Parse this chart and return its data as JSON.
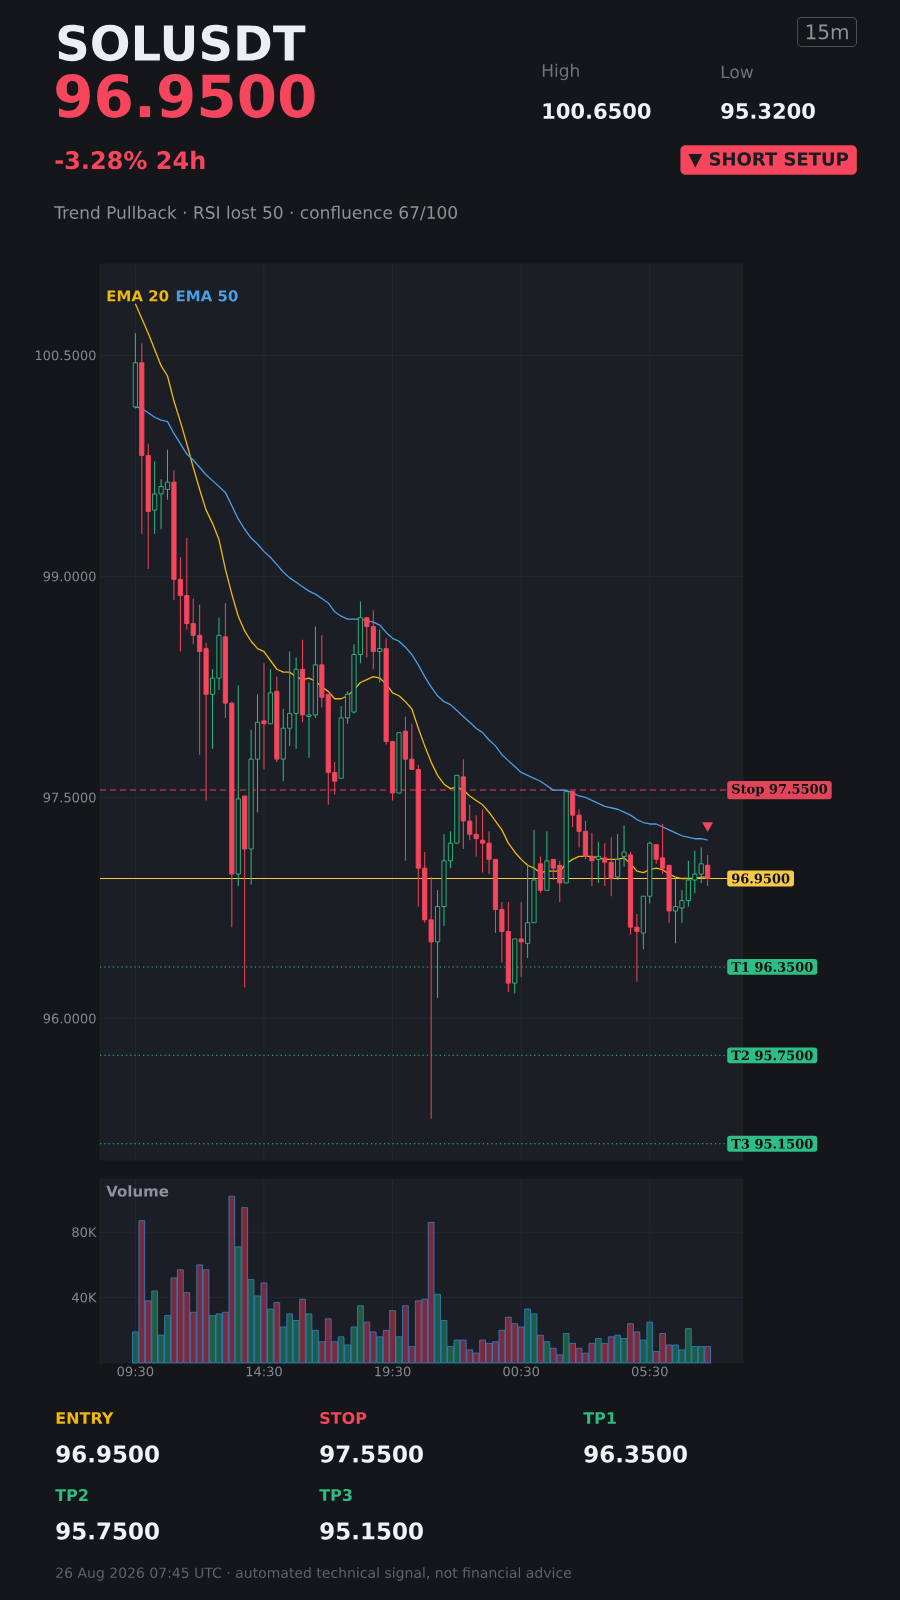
{
  "chart_data": [
    {
      "type": "other",
      "title": "SOLUSDT",
      "annotations": [
        "96.9500",
        "-3.28%  24h",
        "Trend Pullback · RSI lost 50 · confluence 67/100",
        "High",
        "100.6500",
        "Low",
        "95.3200",
        "15m",
        "▼ SHORT SETUP"
      ]
    },
    {
      "type": "candlestick",
      "categories": [
        null,
        null,
        null,
        null,
        null,
        null,
        null,
        null,
        null,
        null,
        null,
        null,
        null,
        null,
        null,
        null,
        null,
        null,
        null,
        null,
        null,
        null,
        null,
        null,
        null,
        null,
        null,
        null,
        null,
        null,
        null,
        null,
        null,
        null,
        null,
        null,
        null,
        null,
        null,
        null,
        null,
        null,
        null,
        null,
        null,
        null,
        null,
        null,
        null,
        null,
        null,
        null,
        null,
        null,
        null,
        null,
        null,
        null,
        null,
        null,
        null,
        null,
        null,
        null,
        null,
        null,
        null,
        null,
        null,
        null,
        null,
        null,
        null,
        null,
        null,
        null,
        null,
        null,
        null,
        null,
        null,
        null,
        null,
        null,
        null,
        null,
        null,
        null,
        null,
        null
      ],
      "ohlc": [
        [
          100.15,
          100.65,
          100.14,
          100.45
        ],
        [
          100.45,
          100.58,
          99.29,
          99.82
        ],
        [
          99.82,
          99.9,
          99.05,
          99.44
        ],
        [
          99.45,
          99.78,
          99.29,
          99.56
        ],
        [
          99.56,
          99.66,
          99.32,
          99.61
        ],
        [
          99.59,
          99.86,
          99.52,
          99.64
        ],
        [
          99.64,
          99.72,
          98.84,
          98.98
        ],
        [
          98.98,
          99.13,
          98.49,
          98.87
        ],
        [
          98.87,
          99.26,
          98.64,
          98.68
        ],
        [
          98.68,
          98.85,
          98.54,
          98.6
        ],
        [
          98.6,
          98.81,
          97.79,
          98.49
        ],
        [
          98.51,
          98.55,
          97.48,
          98.2
        ],
        [
          98.2,
          98.37,
          97.83,
          98.31
        ],
        [
          98.31,
          98.72,
          98.23,
          98.6
        ],
        [
          98.59,
          98.82,
          98.04,
          98.14
        ],
        [
          98.14,
          98.15,
          96.62,
          96.98
        ],
        [
          96.98,
          98.26,
          96.9,
          97.49
        ],
        [
          97.51,
          97.51,
          96.21,
          97.15
        ],
        [
          97.15,
          97.96,
          96.91,
          97.76
        ],
        [
          97.76,
          98.2,
          97.4,
          98.01
        ],
        [
          98.02,
          98.41,
          97.69,
          98.0
        ],
        [
          98.0,
          98.37,
          98.0,
          98.21
        ],
        [
          98.22,
          98.32,
          97.74,
          97.76
        ],
        [
          97.76,
          98.1,
          97.61,
          97.97
        ],
        [
          97.97,
          98.49,
          97.85,
          98.07
        ],
        [
          98.07,
          98.45,
          97.83,
          98.37
        ],
        [
          98.37,
          98.57,
          98.01,
          98.06
        ],
        [
          98.05,
          98.28,
          97.77,
          98.06
        ],
        [
          98.06,
          98.66,
          98.04,
          98.4
        ],
        [
          98.4,
          98.6,
          98.11,
          98.18
        ],
        [
          98.2,
          98.2,
          97.45,
          97.67
        ],
        [
          97.67,
          97.74,
          97.52,
          97.61
        ],
        [
          97.63,
          98.12,
          97.63,
          98.04
        ],
        [
          98.04,
          98.22,
          98.0,
          98.2
        ],
        [
          98.08,
          98.54,
          98.07,
          98.47
        ],
        [
          98.47,
          98.83,
          98.41,
          98.72
        ],
        [
          98.72,
          98.72,
          98.45,
          98.66
        ],
        [
          98.66,
          98.77,
          98.37,
          98.49
        ],
        [
          98.49,
          98.64,
          98.28,
          98.51
        ],
        [
          98.51,
          98.58,
          97.86,
          97.88
        ],
        [
          97.88,
          97.88,
          97.48,
          97.53
        ],
        [
          97.53,
          97.94,
          97.53,
          97.94
        ],
        [
          97.95,
          98.05,
          97.07,
          97.76
        ],
        [
          97.76,
          98.0,
          97.69,
          97.69
        ],
        [
          97.69,
          97.72,
          96.76,
          97.02
        ],
        [
          97.02,
          97.13,
          96.65,
          96.67
        ],
        [
          96.67,
          96.96,
          95.32,
          96.52
        ],
        [
          96.52,
          96.87,
          96.14,
          96.76
        ],
        [
          96.76,
          97.25,
          96.63,
          97.07
        ],
        [
          97.07,
          97.27,
          97.02,
          97.19
        ],
        [
          97.19,
          97.65,
          97.19,
          97.65
        ],
        [
          97.64,
          97.76,
          97.15,
          97.34
        ],
        [
          97.34,
          97.45,
          97.21,
          97.25
        ],
        [
          97.25,
          97.38,
          97.1,
          97.22
        ],
        [
          97.21,
          97.42,
          96.99,
          97.19
        ],
        [
          97.19,
          97.27,
          96.98,
          97.08
        ],
        [
          97.08,
          97.08,
          96.58,
          96.74
        ],
        [
          96.74,
          96.79,
          96.38,
          96.59
        ],
        [
          96.59,
          96.79,
          96.18,
          96.24
        ],
        [
          96.24,
          96.54,
          96.17,
          96.54
        ],
        [
          96.54,
          96.79,
          96.28,
          96.52
        ],
        [
          96.51,
          97.05,
          96.41,
          96.65
        ],
        [
          96.65,
          97.28,
          96.65,
          96.94
        ],
        [
          97.05,
          97.1,
          96.85,
          96.87
        ],
        [
          96.87,
          97.27,
          96.87,
          97.07
        ],
        [
          97.08,
          97.08,
          96.94,
          97.02
        ],
        [
          97.04,
          97.07,
          96.79,
          96.92
        ],
        [
          96.92,
          97.54,
          96.92,
          97.54
        ],
        [
          97.54,
          97.54,
          97.3,
          97.38
        ],
        [
          97.38,
          97.42,
          97.16,
          97.27
        ],
        [
          97.27,
          97.34,
          97.08,
          97.1
        ],
        [
          97.1,
          97.26,
          96.9,
          97.07
        ],
        [
          97.08,
          97.2,
          96.92,
          97.1
        ],
        [
          97.09,
          97.19,
          96.9,
          97.06
        ],
        [
          97.06,
          97.23,
          96.83,
          96.95
        ],
        [
          96.96,
          97.25,
          96.94,
          97.08
        ],
        [
          97.1,
          97.31,
          97.03,
          97.13
        ],
        [
          97.11,
          97.13,
          96.57,
          96.62
        ],
        [
          96.62,
          96.71,
          96.25,
          96.59
        ],
        [
          96.58,
          96.83,
          96.47,
          96.83
        ],
        [
          96.83,
          97.2,
          96.78,
          97.19
        ],
        [
          97.18,
          97.18,
          97.05,
          97.08
        ],
        [
          97.09,
          97.32,
          96.98,
          97.02
        ],
        [
          97.04,
          97.04,
          96.65,
          96.73
        ],
        [
          96.73,
          96.96,
          96.51,
          96.76
        ],
        [
          96.75,
          96.87,
          96.65,
          96.8
        ],
        [
          96.8,
          97.07,
          96.76,
          96.94
        ],
        [
          96.94,
          97.14,
          96.85,
          96.98
        ],
        [
          96.98,
          97.16,
          96.92,
          97.05
        ],
        [
          97.04,
          97.11,
          96.9,
          96.95
        ]
      ],
      "series": [
        {
          "name": "EMA 20",
          "type": "line",
          "color": "#f0b90b",
          "values": [
            100.85,
            100.75,
            100.65,
            100.54,
            100.43,
            100.36,
            100.19,
            100.05,
            99.9,
            99.74,
            99.59,
            99.45,
            99.36,
            99.25,
            99.05,
            98.88,
            98.73,
            98.63,
            98.56,
            98.51,
            98.49,
            98.43,
            98.37,
            98.35,
            98.35,
            98.32,
            98.3,
            98.31,
            98.29,
            98.25,
            98.22,
            98.17,
            98.17,
            98.19,
            98.23,
            98.28,
            98.3,
            98.32,
            98.31,
            98.27,
            98.21,
            98.19,
            98.15,
            98.1,
            97.97,
            97.85,
            97.74,
            97.65,
            97.59,
            97.56,
            97.57,
            97.55,
            97.51,
            97.48,
            97.45,
            97.4,
            97.34,
            97.28,
            97.19,
            97.13,
            97.08,
            97.04,
            97.02,
            96.99,
            97.0,
            97.0,
            97.0,
            97.05,
            97.08,
            97.1,
            97.1,
            97.1,
            97.09,
            97.08,
            97.08,
            97.08,
            97.09,
            97.05,
            97.0,
            96.99,
            97.01,
            97.02,
            97.01,
            96.98,
            96.96,
            96.95,
            96.95,
            96.95,
            96.96,
            96.96
          ]
        },
        {
          "name": "EMA 50",
          "type": "line",
          "color": "#4c9ee8",
          "values": [
            100.15,
            100.14,
            100.11,
            100.08,
            100.06,
            100.05,
            99.97,
            99.9,
            99.83,
            99.79,
            99.74,
            99.69,
            99.65,
            99.61,
            99.57,
            99.48,
            99.39,
            99.32,
            99.26,
            99.22,
            99.17,
            99.13,
            99.08,
            99.03,
            98.99,
            98.96,
            98.93,
            98.9,
            98.88,
            98.85,
            98.82,
            98.76,
            98.73,
            98.71,
            98.71,
            98.71,
            98.7,
            98.69,
            98.67,
            98.62,
            98.58,
            98.56,
            98.52,
            98.47,
            98.4,
            98.32,
            98.25,
            98.19,
            98.15,
            98.13,
            98.09,
            98.05,
            98.01,
            97.97,
            97.94,
            97.89,
            97.85,
            97.79,
            97.75,
            97.71,
            97.67,
            97.65,
            97.63,
            97.61,
            97.58,
            97.55,
            97.55,
            97.55,
            97.53,
            97.51,
            97.5,
            97.48,
            97.46,
            97.44,
            97.43,
            97.42,
            97.4,
            97.38,
            97.35,
            97.33,
            97.32,
            97.32,
            97.3,
            97.28,
            97.26,
            97.24,
            97.23,
            97.22,
            97.22,
            97.21
          ]
        },
        {
          "type": "scatter",
          "marker": "triangle",
          "color": "#f6465d",
          "values": [
            null,
            null,
            null,
            null,
            null,
            null,
            null,
            null,
            null,
            null,
            null,
            null,
            null,
            null,
            null,
            null,
            null,
            null,
            null,
            null,
            null,
            null,
            null,
            null,
            null,
            null,
            null,
            null,
            null,
            null,
            null,
            null,
            null,
            null,
            null,
            null,
            null,
            null,
            null,
            null,
            null,
            null,
            null,
            null,
            null,
            null,
            null,
            null,
            null,
            null,
            null,
            null,
            null,
            null,
            null,
            null,
            null,
            null,
            null,
            null,
            null,
            null,
            null,
            null,
            null,
            null,
            null,
            null,
            null,
            null,
            null,
            null,
            null,
            null,
            null,
            null,
            null,
            null,
            null,
            null,
            null,
            null,
            null,
            null,
            null,
            null,
            null,
            null,
            null,
            97.31
          ]
        }
      ],
      "ylim": [
        95.04,
        101.12
      ],
      "yticks": [
        {
          "value": 96,
          "label": "96.0000"
        },
        {
          "value": 97.5,
          "label": "97.5000"
        },
        {
          "value": 99,
          "label": "99.0000"
        },
        {
          "value": 100.5,
          "label": "100.5000"
        }
      ],
      "ref_lines": [
        {
          "axis": "y",
          "value": 97.55,
          "label": "Stop 97.5500",
          "color": "#e0455a",
          "line_style": "dashed"
        },
        {
          "axis": "y",
          "value": 96.95,
          "label": "96.9500",
          "color": "#f7c948",
          "line_style": "solid"
        },
        {
          "axis": "y",
          "value": 96.35,
          "label": "T1 96.3500",
          "color": "#2ebd85",
          "line_style": "dotted"
        },
        {
          "axis": "y",
          "value": 95.75,
          "label": "T2 95.7500",
          "color": "#2ebd85",
          "line_style": "dotted"
        },
        {
          "axis": "y",
          "value": 95.15,
          "label": "T3 95.1500",
          "color": "#2ebd85",
          "line_style": "dotted"
        }
      ],
      "grid": true,
      "tick_labels": "y"
    },
    {
      "type": "bar",
      "title": "Volume",
      "categories": [
        "09:30",
        null,
        null,
        null,
        null,
        null,
        null,
        null,
        null,
        null,
        null,
        null,
        null,
        null,
        null,
        null,
        null,
        null,
        null,
        null,
        "14:30",
        null,
        null,
        null,
        null,
        null,
        null,
        null,
        null,
        null,
        null,
        null,
        null,
        null,
        null,
        null,
        null,
        null,
        null,
        null,
        "19:30",
        null,
        null,
        null,
        null,
        null,
        null,
        null,
        null,
        null,
        null,
        null,
        null,
        null,
        null,
        null,
        null,
        null,
        null,
        null,
        "00:30",
        null,
        null,
        null,
        null,
        null,
        null,
        null,
        null,
        null,
        null,
        null,
        null,
        null,
        null,
        null,
        null,
        null,
        null,
        null,
        "05:30",
        null,
        null,
        null,
        null,
        null,
        null,
        null,
        null,
        null
      ],
      "values": [
        19000,
        87000,
        38000,
        44000,
        17000,
        29000,
        52000,
        57000,
        43000,
        31000,
        60000,
        57000,
        29000,
        30000,
        31000,
        102000,
        71000,
        95000,
        51000,
        41000,
        49000,
        33000,
        37000,
        22000,
        30000,
        26000,
        39000,
        30000,
        20000,
        13000,
        27000,
        13000,
        16000,
        11000,
        22000,
        35000,
        25000,
        19000,
        16000,
        20000,
        32000,
        16000,
        35000,
        10000,
        38000,
        39000,
        86000,
        42000,
        26000,
        10000,
        14000,
        14000,
        8000,
        6000,
        14000,
        12000,
        13000,
        20000,
        28000,
        24000,
        22000,
        33000,
        30000,
        17000,
        13000,
        9000,
        5000,
        18000,
        12000,
        9000,
        6000,
        12000,
        15000,
        12000,
        16000,
        17000,
        15000,
        24000,
        19000,
        14000,
        25000,
        7000,
        18000,
        11000,
        11000,
        8000,
        21000,
        10000,
        10000,
        10000
      ],
      "colors": [
        "#1e5c44",
        "#7c2a3b",
        "#7c2a3b",
        "#1e5c44",
        "#1e5c44",
        "#1e5c44",
        "#7c2a3b",
        "#7c2a3b",
        "#7c2a3b",
        "#7c2a3b",
        "#7c2a3b",
        "#7c2a3b",
        "#1e5c44",
        "#1e5c44",
        "#7c2a3b",
        "#7c2a3b",
        "#1e5c44",
        "#7c2a3b",
        "#1e5c44",
        "#1e5c44",
        "#7c2a3b",
        "#1e5c44",
        "#7c2a3b",
        "#1e5c44",
        "#1e5c44",
        "#1e5c44",
        "#7c2a3b",
        "#1e5c44",
        "#1e5c44",
        "#7c2a3b",
        "#7c2a3b",
        "#7c2a3b",
        "#1e5c44",
        "#1e5c44",
        "#1e5c44",
        "#1e5c44",
        "#7c2a3b",
        "#7c2a3b",
        "#1e5c44",
        "#7c2a3b",
        "#7c2a3b",
        "#1e5c44",
        "#7c2a3b",
        "#7c2a3b",
        "#7c2a3b",
        "#7c2a3b",
        "#7c2a3b",
        "#1e5c44",
        "#1e5c44",
        "#1e5c44",
        "#1e5c44",
        "#7c2a3b",
        "#7c2a3b",
        "#7c2a3b",
        "#7c2a3b",
        "#7c2a3b",
        "#7c2a3b",
        "#7c2a3b",
        "#7c2a3b",
        "#7c2a3b",
        "#7c2a3b",
        "#1e5c44",
        "#1e5c44",
        "#7c2a3b",
        "#1e5c44",
        "#7c2a3b",
        "#7c2a3b",
        "#1e5c44",
        "#7c2a3b",
        "#7c2a3b",
        "#7c2a3b",
        "#7c2a3b",
        "#1e5c44",
        "#7c2a3b",
        "#7c2a3b",
        "#1e5c44",
        "#1e5c44",
        "#7c2a3b",
        "#7c2a3b",
        "#1e5c44",
        "#1e5c44",
        "#7c2a3b",
        "#7c2a3b",
        "#7c2a3b",
        "#1e5c44",
        "#1e5c44",
        "#1e5c44",
        "#1e5c44",
        "#1e5c44",
        "#7c2a3b"
      ],
      "ylim": [
        0,
        112500
      ],
      "yticks": [
        {
          "value": 40000,
          "label": "40K"
        },
        {
          "value": 80000,
          "label": "80K"
        }
      ],
      "grid": true
    },
    {
      "type": "other",
      "annotations": [
        "ENTRY",
        "96.9500",
        "STOP",
        "97.5500",
        "TP1",
        "96.3500",
        "TP2",
        "95.7500",
        "TP3",
        "95.1500",
        "26 Aug 2026 07:45 UTC  ·  automated technical signal, not financial advice"
      ]
    }
  ]
}
